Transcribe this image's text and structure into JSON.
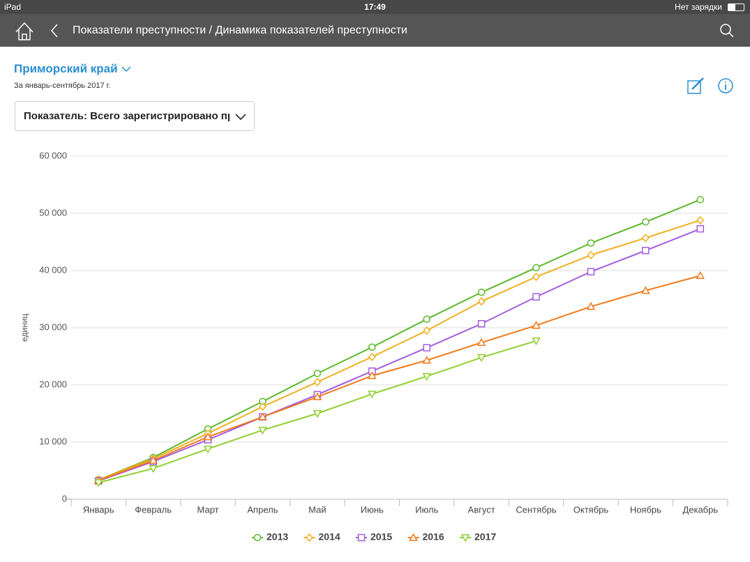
{
  "status_bar": {
    "device": "iPad",
    "time": "17:49",
    "battery": "Нет зарядки"
  },
  "nav": {
    "title": "Показатели преступности / Динамика показателей преступности"
  },
  "header": {
    "region": "Приморский край",
    "period": "За январь-сентябрь 2017 г.",
    "indicator": "Показатель: Всего зарегистрировано пр"
  },
  "chart_data": {
    "type": "line",
    "ylabel": "единиц",
    "categories": [
      "Январь",
      "Февраль",
      "Март",
      "Апрель",
      "Май",
      "Июнь",
      "Июль",
      "Август",
      "Сентябрь",
      "Октябрь",
      "Ноябрь",
      "Декабрь"
    ],
    "series": [
      {
        "name": "2013",
        "color": "#5cb82a",
        "values": [
          3400,
          7300,
          12300,
          17100,
          22000,
          26600,
          31500,
          36200,
          40500,
          44800,
          48500,
          52400
        ]
      },
      {
        "name": "2014",
        "color": "#f0b020",
        "values": [
          3400,
          7100,
          11500,
          16200,
          20500,
          24900,
          29500,
          34600,
          38900,
          42700,
          45700,
          48800
        ]
      },
      {
        "name": "2015",
        "color": "#a35ce0",
        "values": [
          3200,
          6600,
          10400,
          14400,
          18300,
          22400,
          26500,
          30700,
          35400,
          39800,
          43500,
          47300
        ]
      },
      {
        "name": "2016",
        "color": "#f07a1a",
        "values": [
          3300,
          6800,
          10900,
          14400,
          17900,
          21600,
          24300,
          27400,
          30400,
          33700,
          36500,
          39100
        ]
      },
      {
        "name": "2017",
        "color": "#90d030",
        "values": [
          2900,
          5400,
          8800,
          12100,
          15000,
          18400,
          21500,
          24800,
          27700,
          null,
          null,
          null
        ]
      }
    ],
    "ylim": [
      0,
      60000
    ],
    "yticks": [
      0,
      {
        "value": 10000,
        "label": "10 000"
      },
      {
        "value": 20000,
        "label": "20 000"
      },
      {
        "value": 30000,
        "label": "30 000"
      },
      {
        "value": 40000,
        "label": "40 000"
      },
      {
        "value": 50000,
        "label": "50 000"
      },
      {
        "value": 60000,
        "label": "60 000"
      }
    ],
    "grid": true
  }
}
